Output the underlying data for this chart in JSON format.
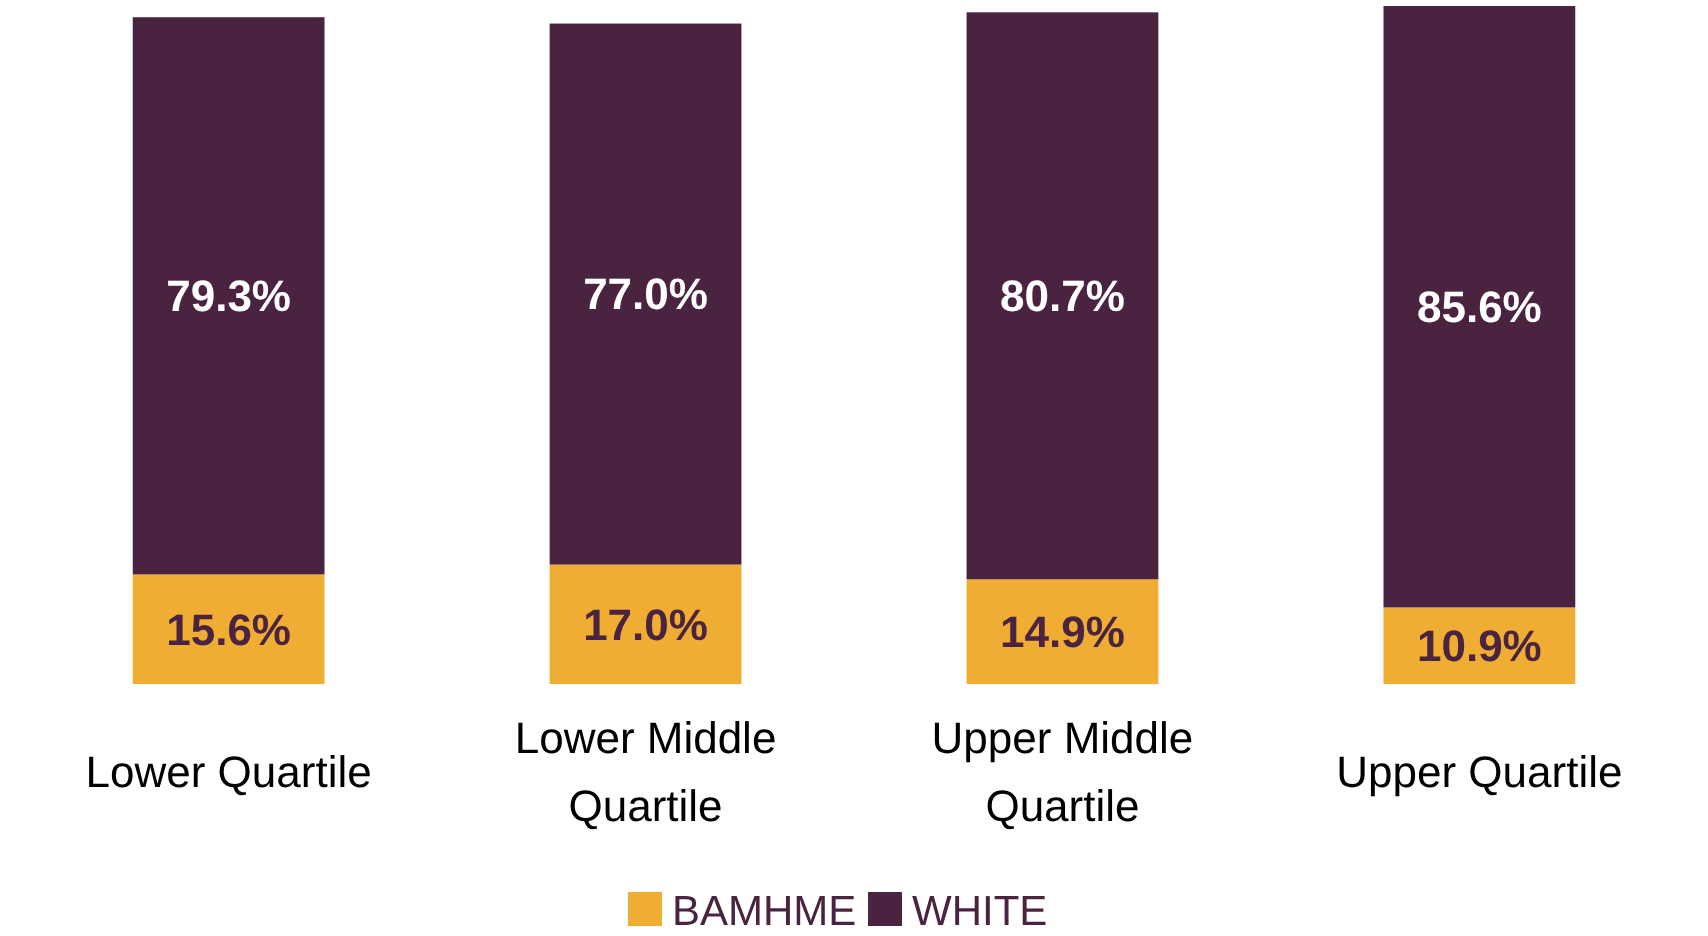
{
  "chart_data": {
    "type": "bar",
    "stacked": true,
    "categories": [
      "Lower Quartile",
      "Lower Middle Quartile",
      "Upper Middle Quartile",
      "Upper Quartile"
    ],
    "series": [
      {
        "name": "BAMHME",
        "color": "#f0ad33",
        "values": [
          15.6,
          17.0,
          14.9,
          10.9
        ],
        "value_labels": [
          "15.6%",
          "17.0%",
          "14.9%",
          "10.9%"
        ]
      },
      {
        "name": "WHITE",
        "color": "#4a2340",
        "values": [
          79.3,
          77.0,
          80.7,
          85.6
        ],
        "value_labels": [
          "79.3%",
          "77.0%",
          "80.7%",
          "85.6%"
        ]
      }
    ],
    "legend": "bottom"
  }
}
